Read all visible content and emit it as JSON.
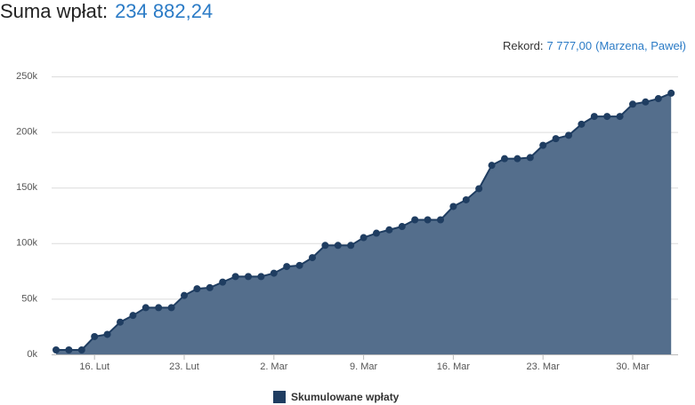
{
  "chart_data": {
    "type": "area",
    "title": "Suma wpłat:",
    "total": "234 882,24",
    "record_label": "Rekord:",
    "record_value": "7 777,00",
    "record_holders": "(Marzena, Paweł)",
    "categories": [
      null,
      null,
      null,
      "16. Lut",
      null,
      null,
      null,
      null,
      null,
      null,
      "23. Lut",
      null,
      null,
      null,
      null,
      null,
      null,
      "2. Mar",
      null,
      null,
      null,
      null,
      null,
      null,
      "9. Mar",
      null,
      null,
      null,
      null,
      null,
      null,
      "16. Mar",
      null,
      null,
      null,
      null,
      null,
      null,
      "23. Mar",
      null,
      null,
      null,
      null,
      null,
      null,
      "30. Mar",
      null,
      null,
      null
    ],
    "series": [
      {
        "name": "Skumulowane wpłaty",
        "color": "#1f3d61",
        "fill": "#546e8c",
        "values": [
          4000,
          4000,
          4000,
          16000,
          18000,
          29000,
          35000,
          42000,
          42000,
          42000,
          53000,
          59000,
          60000,
          65000,
          70000,
          70000,
          70000,
          73000,
          79000,
          80000,
          87000,
          98000,
          98000,
          98000,
          105000,
          109000,
          112000,
          115000,
          121000,
          121000,
          121000,
          133000,
          139000,
          149000,
          170000,
          176000,
          176000,
          177000,
          188000,
          194000,
          197000,
          207000,
          214000,
          214000,
          214000,
          225000,
          227000,
          230000,
          234882.24
        ]
      }
    ],
    "ylim": [
      0,
      250000
    ],
    "yticks": [
      {
        "value": 0,
        "label": "0k"
      },
      {
        "value": 50000,
        "label": "50k"
      },
      {
        "value": 100000,
        "label": "100k"
      },
      {
        "value": 150000,
        "label": "150k"
      },
      {
        "value": 200000,
        "label": "200k"
      },
      {
        "value": 250000,
        "label": "250k"
      }
    ],
    "grid": true
  }
}
